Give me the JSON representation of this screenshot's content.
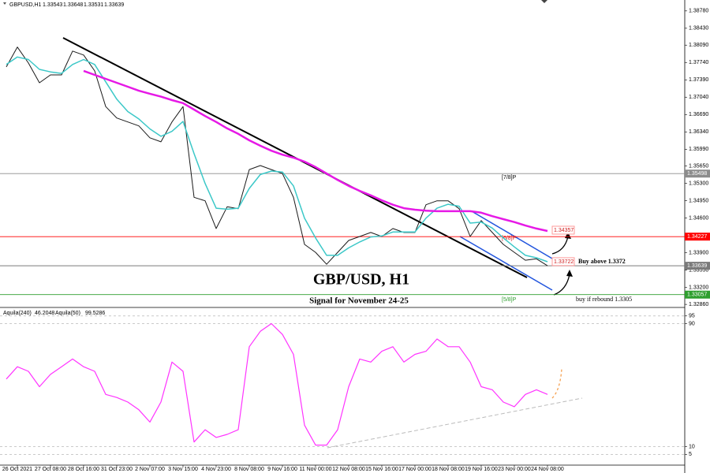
{
  "chart_data": [
    {
      "type": "line",
      "symbol": "GBPUSD,H1",
      "ohlc": [
        1.33543,
        1.33648,
        1.33531,
        1.33639
      ],
      "annotations": [
        "GBP/USD, H1",
        "Signal for November 24-25",
        "Buy above 1.3372",
        "buy if rebound 1.3305",
        "[7/8]P",
        "[6/8]P",
        "[5/8]P"
      ],
      "x": [
        0,
        1,
        2,
        3,
        4,
        5,
        6,
        7,
        8,
        9,
        10,
        11,
        12,
        13,
        14,
        15,
        16,
        17,
        18,
        19,
        20,
        21,
        22,
        23,
        24,
        25,
        26,
        27,
        28,
        29,
        30,
        31,
        32,
        33,
        34,
        35,
        36,
        37,
        38,
        39,
        40,
        41,
        42,
        43,
        44,
        45,
        46,
        47,
        48,
        49
      ],
      "series": [
        {
          "color": "#1a1a1a",
          "width": 1,
          "values": [
            1.3765,
            1.3805,
            1.3773,
            1.3733,
            1.3749,
            1.3749,
            1.3797,
            1.3789,
            1.3757,
            1.3685,
            1.3662,
            1.3654,
            1.3646,
            1.3622,
            1.3614,
            1.3654,
            1.3685,
            1.3502,
            1.3495,
            1.3439,
            1.3483,
            1.3479,
            1.3558,
            1.3566,
            1.3558,
            1.355,
            1.3502,
            1.3407,
            1.3391,
            1.3367,
            1.3391,
            1.3415,
            1.3423,
            1.3431,
            1.3423,
            1.3439,
            1.3431,
            1.3431,
            1.3487,
            1.3495,
            1.3495,
            1.3479,
            1.3423,
            1.3455,
            1.3431,
            1.3407,
            1.3391,
            1.3375,
            1.3378,
            1.33639
          ]
        },
        {
          "color": "#3cc8c8",
          "width": 1.5,
          "values": [
            1.377,
            1.3785,
            1.378,
            1.376,
            1.3755,
            1.3752,
            1.377,
            1.378,
            1.377,
            1.3735,
            1.37,
            1.3675,
            1.366,
            1.364,
            1.3625,
            1.3635,
            1.3655,
            1.359,
            1.353,
            1.348,
            1.3478,
            1.348,
            1.352,
            1.3548,
            1.3555,
            1.3553,
            1.3525,
            1.346,
            1.342,
            1.3385,
            1.3385,
            1.34,
            1.3412,
            1.3422,
            1.3424,
            1.3432,
            1.3432,
            1.3432,
            1.346,
            1.348,
            1.3488,
            1.3484,
            1.345,
            1.3452,
            1.344,
            1.342,
            1.3402,
            1.3385,
            1.338,
            1.3372
          ]
        },
        {
          "color": "#e619e6",
          "width": 2.5,
          "values": [
            null,
            null,
            null,
            null,
            null,
            null,
            null,
            1.3757,
            1.3749,
            1.3741,
            1.3733,
            1.3725,
            1.3717,
            1.3711,
            1.3705,
            1.3698,
            1.3692,
            1.3679,
            1.3666,
            1.3654,
            1.3641,
            1.363,
            1.3617,
            1.3606,
            1.3596,
            1.3588,
            1.3582,
            1.3574,
            1.3563,
            1.355,
            1.3537,
            1.3525,
            1.3515,
            1.3506,
            1.3496,
            1.3487,
            1.348,
            1.3477,
            1.3475,
            1.3474,
            1.3474,
            1.3474,
            1.3474,
            1.3471,
            1.3464,
            1.3458,
            1.3452,
            1.3445,
            1.3439,
            1.3434
          ]
        }
      ],
      "levels": [
        {
          "value": 1.35498,
          "color": "#8c8c8c"
        },
        {
          "value": 1.34227,
          "color": "#ff0000"
        },
        {
          "value": 1.33639,
          "color": "#7a7a7a"
        },
        {
          "value": 1.33057,
          "color": "#2e9e2e"
        }
      ],
      "markers": [
        {
          "value": 1.34357,
          "color": "#ff9a9a"
        },
        {
          "value": 1.33722,
          "color": "#ff9a9a"
        }
      ],
      "xlim": [
        -0.57,
        61.43
      ],
      "ylim": [
        1.3283,
        1.39
      ],
      "grid": false,
      "yticks": [
        {
          "value": 1.3878,
          "label": "1.38780"
        },
        {
          "value": 1.3843,
          "label": "1.38430"
        },
        {
          "value": 1.3809,
          "label": "1.38090"
        },
        {
          "value": 1.3774,
          "label": "1.37740"
        },
        {
          "value": 1.3739,
          "label": "1.37390"
        },
        {
          "value": 1.3704,
          "label": "1.37040"
        },
        {
          "value": 1.3669,
          "label": "1.36690"
        },
        {
          "value": 1.3634,
          "label": "1.36340"
        },
        {
          "value": 1.3599,
          "label": "1.35990"
        },
        {
          "value": 1.3565,
          "label": "1.35650"
        },
        {
          "value": 1.353,
          "label": "1.35300"
        },
        {
          "value": 1.3495,
          "label": "1.34950"
        },
        {
          "value": 1.346,
          "label": "1.34600"
        },
        {
          "value": 1.339,
          "label": "1.33900"
        },
        {
          "value": 1.3355,
          "label": "1.33550"
        },
        {
          "value": 1.332,
          "label": "1.33200"
        },
        {
          "value": 1.3286,
          "label": "1.32860"
        }
      ],
      "xticks": [
        {
          "value": 1,
          "label": "26 Oct 2021"
        },
        {
          "value": 4,
          "label": "27 Oct 08:00"
        },
        {
          "value": 7,
          "label": "28 Oct 16:00"
        },
        {
          "value": 10,
          "label": "31 Oct 23:00"
        },
        {
          "value": 13,
          "label": "2 Nov 07:00"
        },
        {
          "value": 16,
          "label": "3 Nov 15:00"
        },
        {
          "value": 19,
          "label": "4 Nov 23:00"
        },
        {
          "value": 22,
          "label": "8 Nov 08:00"
        },
        {
          "value": 25,
          "label": "9 Nov 16:00"
        },
        {
          "value": 28,
          "label": "11 Nov 00:00"
        },
        {
          "value": 31,
          "label": "12 Nov 08:00"
        },
        {
          "value": 34,
          "label": "15 Nov 16:00"
        },
        {
          "value": 37,
          "label": "17 Nov 00:00"
        },
        {
          "value": 40,
          "label": "18 Nov 08:00"
        },
        {
          "value": 43,
          "label": "19 Nov 16:00"
        },
        {
          "value": 46,
          "label": "23 Nov 00:00"
        },
        {
          "value": 49,
          "label": "24 Nov 08:00"
        }
      ]
    },
    {
      "type": "line",
      "indicators": [
        {
          "label": "Aquila(240)",
          "value": 46.2048
        },
        {
          "label": "Aquila(50)",
          "value": 99.5286
        }
      ],
      "x": [
        0,
        1,
        2,
        3,
        4,
        5,
        6,
        7,
        8,
        9,
        10,
        11,
        12,
        13,
        14,
        15,
        16,
        17,
        18,
        19,
        20,
        21,
        22,
        23,
        24,
        25,
        26,
        27,
        28,
        29,
        30,
        31,
        32,
        33,
        34,
        35,
        36,
        37,
        38,
        39,
        40,
        41,
        42,
        43,
        44,
        45,
        46,
        47,
        48,
        49
      ],
      "series": [
        {
          "color": "#ff33ff",
          "width": 1.2,
          "values": [
            54,
            62,
            59,
            49,
            57,
            62,
            67,
            62,
            59,
            44,
            42,
            39,
            34,
            26,
            39,
            65,
            59,
            13,
            21,
            16,
            18,
            21,
            75,
            85,
            90,
            83,
            70,
            24,
            11,
            11,
            21,
            49,
            67,
            65,
            72,
            75,
            65,
            70,
            72,
            80,
            75,
            75,
            65,
            49,
            47,
            39,
            36,
            44,
            47,
            44
          ]
        }
      ],
      "xlim": [
        -0.57,
        61.43
      ],
      "ylim": [
        -2,
        99.5
      ],
      "grid": true,
      "yticks": [
        95,
        90,
        10,
        5
      ]
    }
  ]
}
